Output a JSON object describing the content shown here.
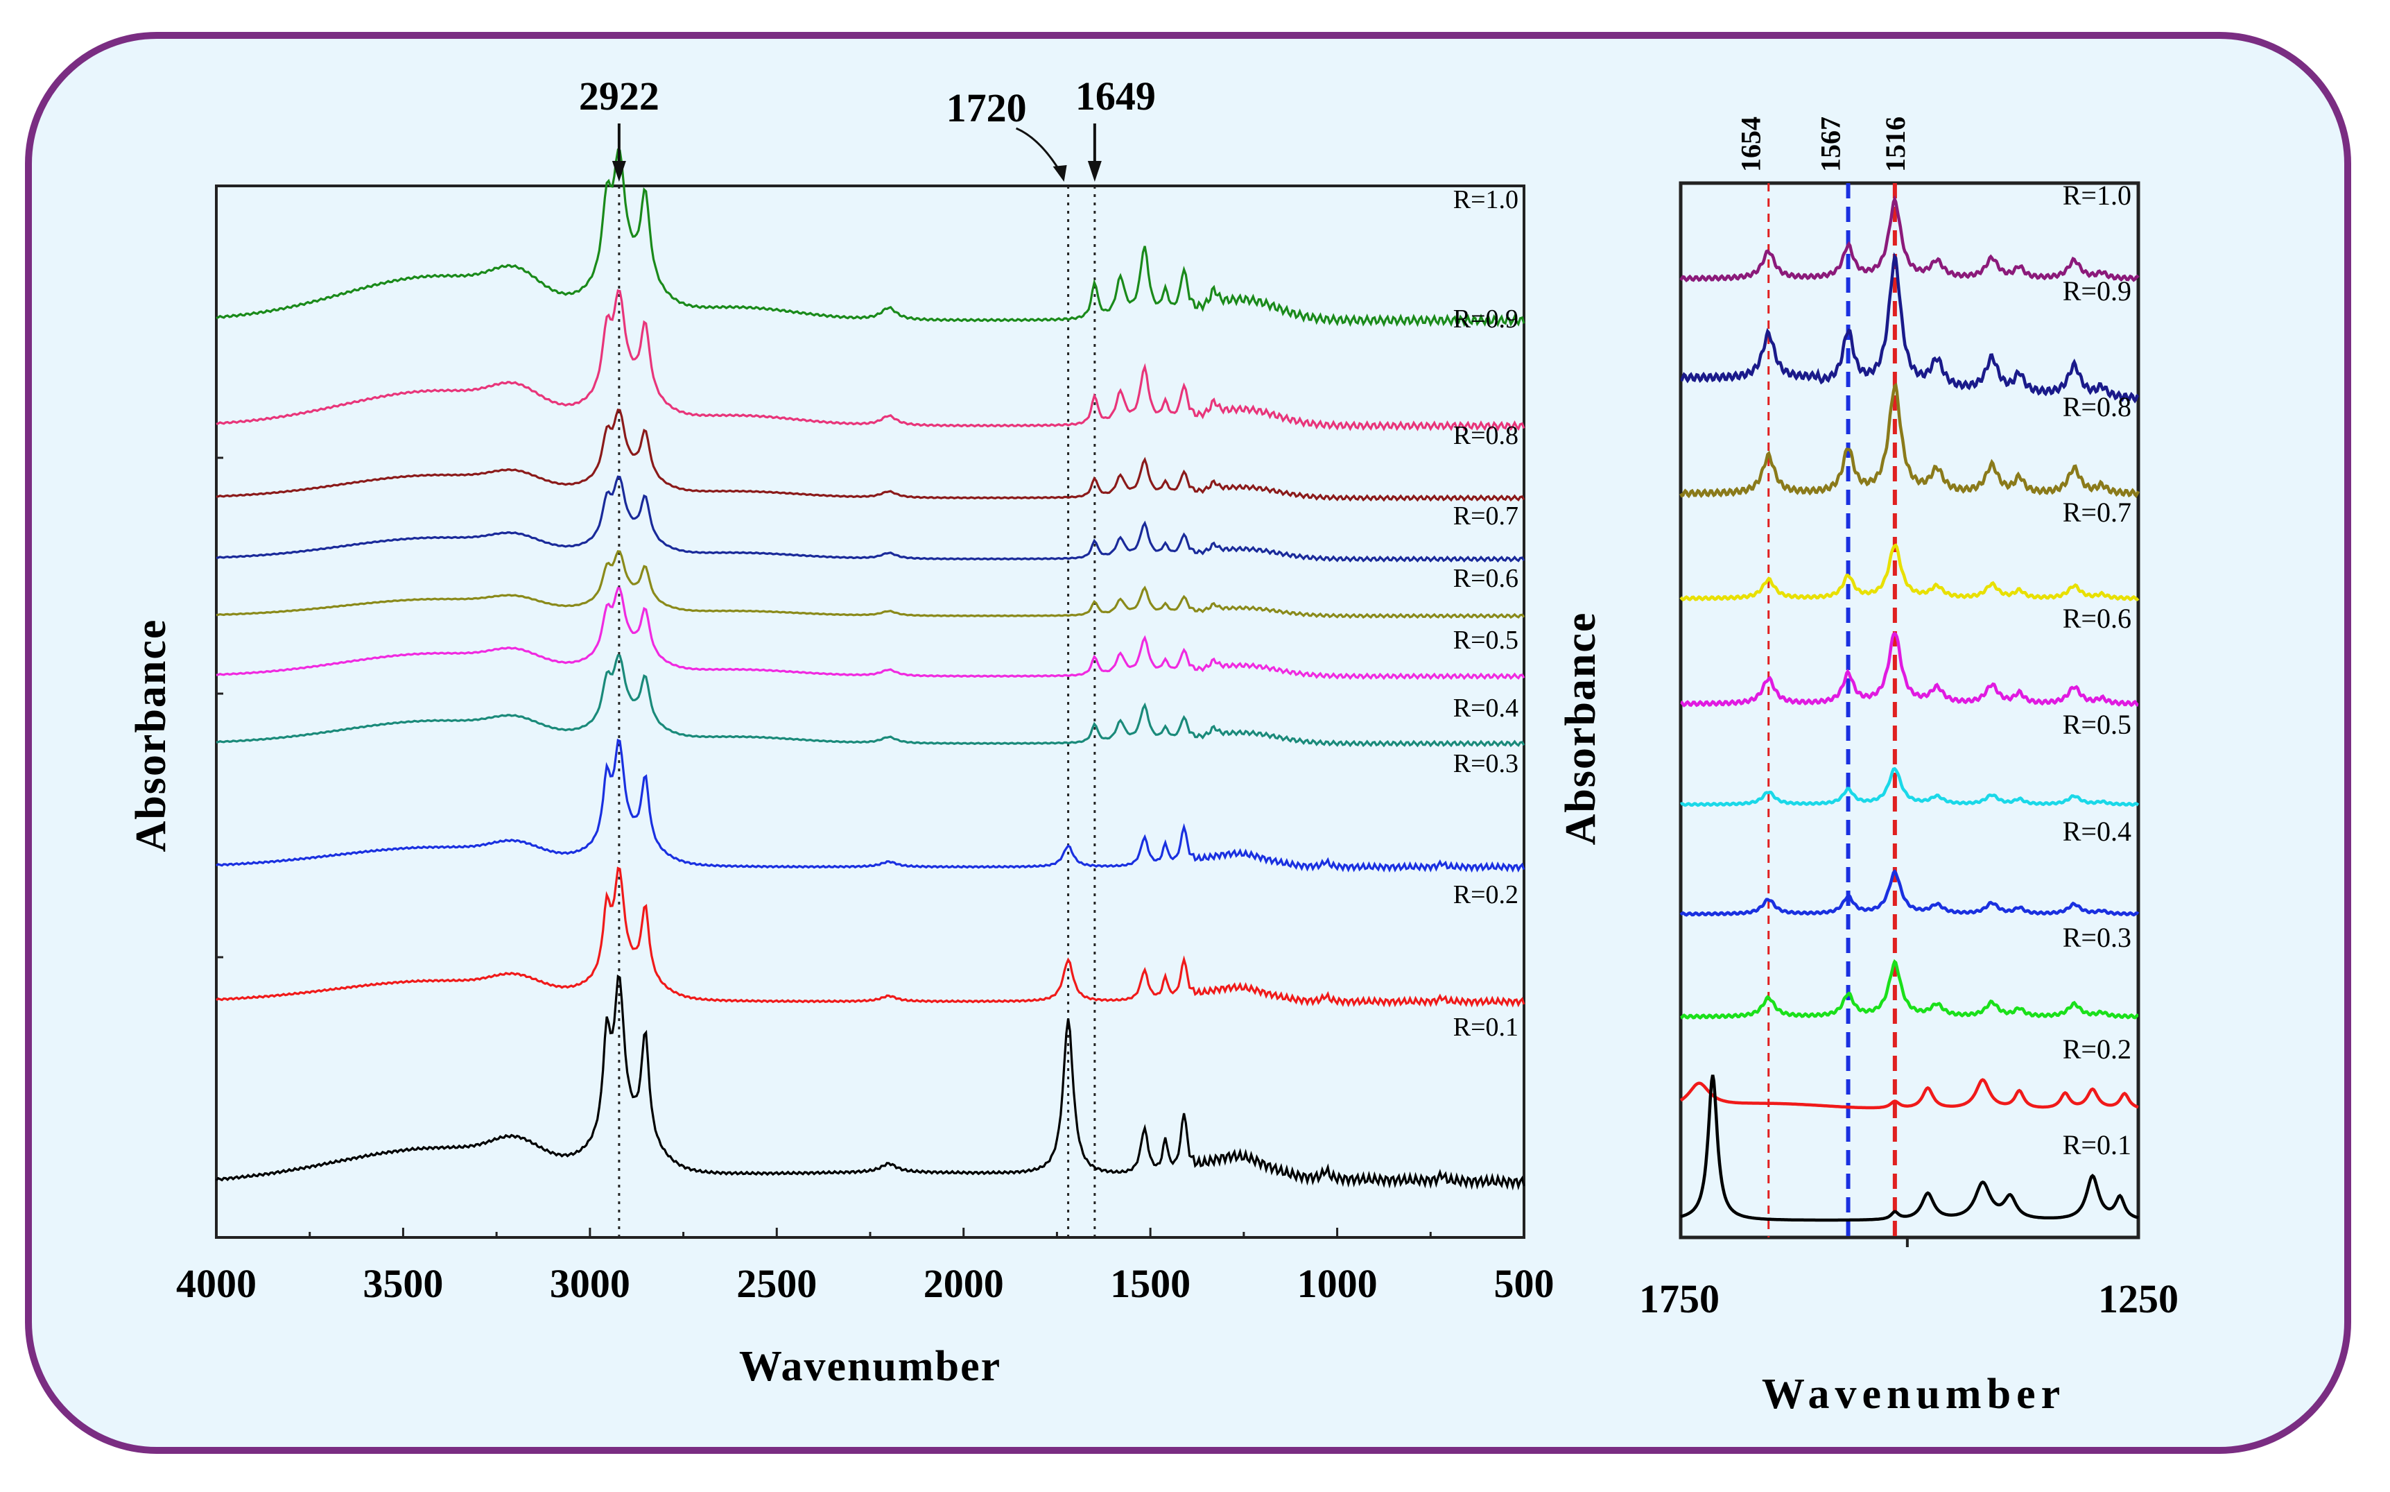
{
  "chart_data": [
    {
      "type": "line",
      "panel": "left",
      "title": "",
      "xlabel": "Wavenumber",
      "ylabel": "Absorbance",
      "xlim": [
        4000,
        500
      ],
      "x_ticks": [
        "4000",
        "3500",
        "3000",
        "2500",
        "2000",
        "1500",
        "1000",
        "500"
      ],
      "x_tick_values": [
        4000,
        3500,
        3000,
        2500,
        2000,
        1500,
        1000,
        500
      ],
      "marker_lines": [
        2922,
        1720,
        1649
      ],
      "annotations": [
        "2922",
        "1720",
        "1649"
      ],
      "series": [
        {
          "name": "R=1.0",
          "label": "R=1.0",
          "color": "#1a8a1a",
          "baseline": 0.0,
          "amp": 1.0
        },
        {
          "name": "R=0.9",
          "label": "R=0.9",
          "color": "#e8357a",
          "baseline": 0.0,
          "amp": 0.75
        },
        {
          "name": "R=0.8",
          "label": "R=0.8",
          "color": "#8b1a1a",
          "baseline": 0.0,
          "amp": 0.55
        },
        {
          "name": "R=0.7",
          "label": "R=0.7",
          "color": "#1a2a9a",
          "baseline": 0.0,
          "amp": 0.55
        },
        {
          "name": "R=0.6",
          "label": "R=0.6",
          "color": "#8a8a1a",
          "baseline": 0.0,
          "amp": 0.45
        },
        {
          "name": "R=0.5",
          "label": "R=0.5",
          "color": "#f02ae0",
          "baseline": 0.0,
          "amp": 0.55
        },
        {
          "name": "R=0.4",
          "label": "R=0.4",
          "color": "#1a8a7a",
          "baseline": 0.0,
          "amp": 0.55
        },
        {
          "name": "R=0.3",
          "label": "R=0.3",
          "color": "#1a30e0",
          "baseline": 0.0,
          "amp": 1.1
        },
        {
          "name": "R=0.2",
          "label": "R=0.2",
          "color": "#f01a1a",
          "baseline": 0.0,
          "amp": 1.2
        },
        {
          "name": "R=0.1",
          "label": "R=0.1",
          "color": "#000000",
          "baseline": 0.0,
          "amp": 1.6
        }
      ]
    },
    {
      "type": "line",
      "panel": "right",
      "title": "",
      "xlabel": "Wavenumber",
      "ylabel": "Absorbance",
      "xlim": [
        1750,
        1250
      ],
      "x_ticks": [
        "1750",
        "1250"
      ],
      "x_tick_values": [
        1750,
        1250
      ],
      "marker_lines": [
        1654,
        1567,
        1516
      ],
      "marker_colors": [
        "#e02020",
        "#1a30e0",
        "#e02020"
      ],
      "annotations": [
        "1654",
        "1567",
        "1516"
      ],
      "series": [
        {
          "name": "R=1.0",
          "label": "R=1.0",
          "color": "#8b1a7a",
          "amp": 0.7
        },
        {
          "name": "R=0.9",
          "label": "R=0.9",
          "color": "#1a1a8a",
          "amp": 1.6
        },
        {
          "name": "R=0.8",
          "label": "R=0.8",
          "color": "#8a7a1a",
          "amp": 1.1
        },
        {
          "name": "R=0.7",
          "label": "R=0.7",
          "color": "#e8e000",
          "amp": 0.5
        },
        {
          "name": "R=0.6",
          "label": "R=0.6",
          "color": "#e01ae0",
          "amp": 0.7
        },
        {
          "name": "R=0.5",
          "label": "R=0.5",
          "color": "#1ad8e8",
          "amp": 0.3
        },
        {
          "name": "R=0.4",
          "label": "R=0.4",
          "color": "#1a30e0",
          "amp": 0.25
        },
        {
          "name": "R=0.3",
          "label": "R=0.3",
          "color": "#1ae01a",
          "amp": 0.45
        },
        {
          "name": "R=0.2",
          "label": "R=0.2",
          "color": "#f01a1a",
          "amp": 0.6
        },
        {
          "name": "R=0.1",
          "label": "R=0.1",
          "color": "#000000",
          "amp": 1.2
        }
      ]
    }
  ],
  "colors": {
    "frame_border": "#7a2d82",
    "frame_fill": "#e9f6fd"
  }
}
